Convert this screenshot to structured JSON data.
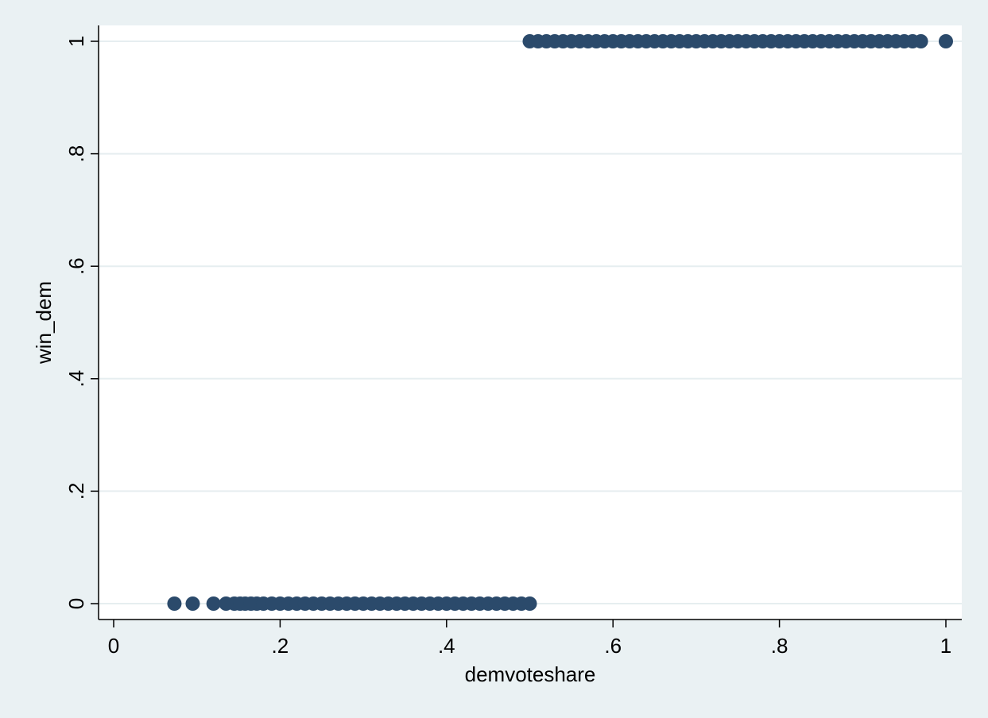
{
  "chart_data": {
    "type": "scatter",
    "xlabel": "demvoteshare",
    "ylabel": "win_dem",
    "xlim": [
      0,
      1
    ],
    "ylim": [
      0,
      1
    ],
    "xticks": [
      {
        "value": 0,
        "label": "0"
      },
      {
        "value": 0.2,
        "label": ".2"
      },
      {
        "value": 0.4,
        "label": ".4"
      },
      {
        "value": 0.6,
        "label": ".6"
      },
      {
        "value": 0.8,
        "label": ".8"
      },
      {
        "value": 1,
        "label": "1"
      }
    ],
    "yticks": [
      {
        "value": 0,
        "label": "0"
      },
      {
        "value": 0.2,
        "label": ".2"
      },
      {
        "value": 0.4,
        "label": ".4"
      },
      {
        "value": 0.6,
        "label": ".6"
      },
      {
        "value": 0.8,
        "label": ".8"
      },
      {
        "value": 1,
        "label": "1"
      }
    ],
    "grid": "horizontal",
    "marker_color": "#2b4a6b",
    "series": [
      {
        "points": [
          [
            0.073,
            0
          ],
          [
            0.095,
            0
          ],
          [
            0.12,
            0
          ],
          [
            0.135,
            0
          ],
          [
            0.145,
            0
          ],
          [
            0.152,
            0
          ],
          [
            0.158,
            0
          ],
          [
            0.165,
            0
          ],
          [
            0.172,
            0
          ],
          [
            0.18,
            0
          ],
          [
            0.19,
            0
          ],
          [
            0.2,
            0
          ],
          [
            0.21,
            0
          ],
          [
            0.22,
            0
          ],
          [
            0.23,
            0
          ],
          [
            0.24,
            0
          ],
          [
            0.25,
            0
          ],
          [
            0.26,
            0
          ],
          [
            0.27,
            0
          ],
          [
            0.28,
            0
          ],
          [
            0.29,
            0
          ],
          [
            0.3,
            0
          ],
          [
            0.31,
            0
          ],
          [
            0.32,
            0
          ],
          [
            0.33,
            0
          ],
          [
            0.34,
            0
          ],
          [
            0.35,
            0
          ],
          [
            0.36,
            0
          ],
          [
            0.37,
            0
          ],
          [
            0.38,
            0
          ],
          [
            0.39,
            0
          ],
          [
            0.4,
            0
          ],
          [
            0.41,
            0
          ],
          [
            0.42,
            0
          ],
          [
            0.43,
            0
          ],
          [
            0.44,
            0
          ],
          [
            0.45,
            0
          ],
          [
            0.46,
            0
          ],
          [
            0.47,
            0
          ],
          [
            0.48,
            0
          ],
          [
            0.49,
            0
          ],
          [
            0.5,
            0
          ],
          [
            0.5,
            1
          ],
          [
            0.51,
            1
          ],
          [
            0.52,
            1
          ],
          [
            0.53,
            1
          ],
          [
            0.54,
            1
          ],
          [
            0.55,
            1
          ],
          [
            0.56,
            1
          ],
          [
            0.57,
            1
          ],
          [
            0.58,
            1
          ],
          [
            0.59,
            1
          ],
          [
            0.6,
            1
          ],
          [
            0.61,
            1
          ],
          [
            0.62,
            1
          ],
          [
            0.63,
            1
          ],
          [
            0.64,
            1
          ],
          [
            0.65,
            1
          ],
          [
            0.66,
            1
          ],
          [
            0.67,
            1
          ],
          [
            0.68,
            1
          ],
          [
            0.69,
            1
          ],
          [
            0.7,
            1
          ],
          [
            0.71,
            1
          ],
          [
            0.72,
            1
          ],
          [
            0.73,
            1
          ],
          [
            0.74,
            1
          ],
          [
            0.75,
            1
          ],
          [
            0.76,
            1
          ],
          [
            0.77,
            1
          ],
          [
            0.78,
            1
          ],
          [
            0.79,
            1
          ],
          [
            0.8,
            1
          ],
          [
            0.81,
            1
          ],
          [
            0.82,
            1
          ],
          [
            0.83,
            1
          ],
          [
            0.84,
            1
          ],
          [
            0.85,
            1
          ],
          [
            0.86,
            1
          ],
          [
            0.87,
            1
          ],
          [
            0.88,
            1
          ],
          [
            0.89,
            1
          ],
          [
            0.9,
            1
          ],
          [
            0.91,
            1
          ],
          [
            0.92,
            1
          ],
          [
            0.93,
            1
          ],
          [
            0.94,
            1
          ],
          [
            0.95,
            1
          ],
          [
            0.96,
            1
          ],
          [
            0.97,
            1
          ],
          [
            1.0,
            1
          ]
        ]
      }
    ]
  }
}
